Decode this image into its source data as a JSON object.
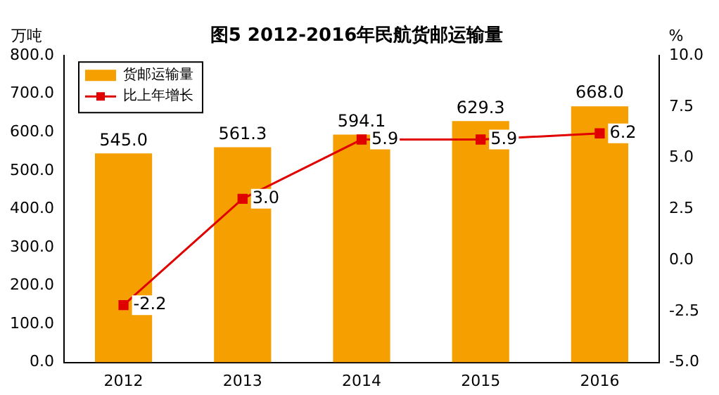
{
  "chart_data": {
    "type": "bar",
    "title": "图5 2012-2016年民航货邮运输量",
    "ylabel": "万吨",
    "y2label": "%",
    "categories": [
      "2012",
      "2013",
      "2014",
      "2015",
      "2016"
    ],
    "series": [
      {
        "name": "货邮运输量",
        "color": "#f5a000",
        "values": [
          545.0,
          561.3,
          594.1,
          629.3,
          668.0
        ],
        "value_labels": [
          "545.0",
          "561.3",
          "594.1",
          "629.3",
          "668.0"
        ]
      },
      {
        "name": "比上年增长",
        "type": "line",
        "axis": "y2",
        "color": "#e00000",
        "values": [
          -2.2,
          3.0,
          5.9,
          5.9,
          6.2
        ],
        "value_labels": [
          "-2.2",
          "3.0",
          "5.9",
          "5.9",
          "6.2"
        ]
      }
    ],
    "ylim": [
      0,
      800
    ],
    "yticks": [
      {
        "value": 0,
        "label": "0.0"
      },
      {
        "value": 100,
        "label": "100.0"
      },
      {
        "value": 200,
        "label": "200.0"
      },
      {
        "value": 300,
        "label": "300.0"
      },
      {
        "value": 400,
        "label": "400.0"
      },
      {
        "value": 500,
        "label": "500.0"
      },
      {
        "value": 600,
        "label": "600.0"
      },
      {
        "value": 700,
        "label": "700.0"
      },
      {
        "value": 800,
        "label": "800.0"
      }
    ],
    "y2lim": [
      -5,
      10
    ],
    "y2ticks": [
      {
        "value": -5,
        "label": "-5.0"
      },
      {
        "value": -2.5,
        "label": "-2.5"
      },
      {
        "value": 0,
        "label": "0.0"
      },
      {
        "value": 2.5,
        "label": "2.5"
      },
      {
        "value": 5,
        "label": "5.0"
      },
      {
        "value": 7.5,
        "label": "7.5"
      },
      {
        "value": 10,
        "label": "10.0"
      }
    ],
    "grid": false,
    "legend": "top left",
    "marker": "square",
    "line_style": "solid"
  }
}
